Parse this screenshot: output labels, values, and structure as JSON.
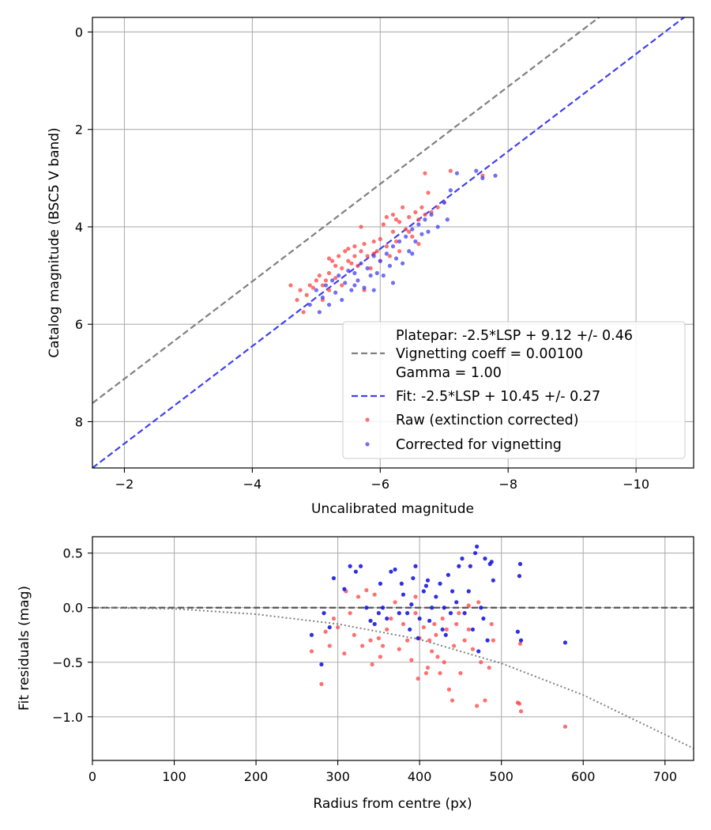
{
  "chart_data": [
    {
      "type": "scatter",
      "title": "",
      "xlabel": "Uncalibrated magnitude",
      "ylabel": "Catalog magnitude (BSC5 V band)",
      "xlim": [
        -1.5,
        -10.9
      ],
      "ylim": [
        8.95,
        -0.3
      ],
      "x_axis_inverted": true,
      "y_axis_inverted": true,
      "xticks": [
        -2,
        -4,
        -6,
        -8,
        -10
      ],
      "xtick_labels": [
        "−2",
        "−4",
        "−6",
        "−8",
        "−10"
      ],
      "yticks": [
        0,
        2,
        4,
        6,
        8
      ],
      "ytick_labels": [
        "0",
        "2",
        "4",
        "6",
        "8"
      ],
      "grid": true,
      "legend_position": "bottom-right",
      "lines": [
        {
          "name": "Platepar: -2.5*LSP + 9.12 +/- 0.46",
          "label_lines": [
            "Platepar: -2.5*LSP + 9.12 +/- 0.46",
            "Vignetting coeff = 0.00100",
            "Gamma = 1.00"
          ],
          "style": "dashed",
          "color": "#808080",
          "slope": 1,
          "intercept": 9.12
        },
        {
          "name": "Fit: -2.5*LSP + 10.45 +/- 0.27",
          "style": "dashed",
          "color": "#4040f0",
          "slope": 1,
          "intercept": 10.45
        }
      ],
      "series": [
        {
          "name": "Raw (extinction corrected)",
          "color": "#ff4040",
          "points": [
            [
              -4.6,
              5.2
            ],
            [
              -4.7,
              5.5
            ],
            [
              -4.75,
              5.3
            ],
            [
              -4.8,
              5.75
            ],
            [
              -4.85,
              5.4
            ],
            [
              -4.9,
              5.2
            ],
            [
              -4.95,
              5.25
            ],
            [
              -5.0,
              5.1
            ],
            [
              -5.05,
              5.0
            ],
            [
              -5.1,
              5.2
            ],
            [
              -5.1,
              5.5
            ],
            [
              -5.15,
              5.1
            ],
            [
              -5.2,
              4.95
            ],
            [
              -5.2,
              5.3
            ],
            [
              -5.25,
              4.7
            ],
            [
              -5.3,
              4.8
            ],
            [
              -5.3,
              5.05
            ],
            [
              -5.35,
              4.6
            ],
            [
              -5.4,
              4.85
            ],
            [
              -5.4,
              5.2
            ],
            [
              -5.45,
              4.5
            ],
            [
              -5.5,
              4.7
            ],
            [
              -5.55,
              4.75
            ],
            [
              -5.6,
              4.4
            ],
            [
              -5.6,
              4.6
            ],
            [
              -5.65,
              4.8
            ],
            [
              -5.7,
              4.0
            ],
            [
              -5.7,
              4.5
            ],
            [
              -5.75,
              4.35
            ],
            [
              -5.75,
              5.3
            ],
            [
              -5.8,
              4.6
            ],
            [
              -5.85,
              4.85
            ],
            [
              -5.9,
              4.3
            ],
            [
              -5.95,
              4.5
            ],
            [
              -6.0,
              4.25
            ],
            [
              -6.0,
              4.7
            ],
            [
              -6.05,
              3.95
            ],
            [
              -6.1,
              4.4
            ],
            [
              -6.1,
              3.8
            ],
            [
              -6.15,
              4.6
            ],
            [
              -6.2,
              3.75
            ],
            [
              -6.2,
              4.1
            ],
            [
              -6.25,
              4.3
            ],
            [
              -6.3,
              3.9
            ],
            [
              -6.3,
              4.5
            ],
            [
              -6.35,
              3.6
            ],
            [
              -6.4,
              4.05
            ],
            [
              -6.45,
              3.8
            ],
            [
              -6.5,
              4.2
            ],
            [
              -6.55,
              3.7
            ],
            [
              -6.6,
              3.85
            ],
            [
              -6.6,
              4.35
            ],
            [
              -6.65,
              3.6
            ],
            [
              -6.7,
              3.75
            ],
            [
              -6.7,
              2.9
            ],
            [
              -6.75,
              3.3
            ],
            [
              -6.8,
              3.7
            ],
            [
              -6.9,
              3.6
            ],
            [
              -7.0,
              3.5
            ],
            [
              -7.1,
              2.85
            ],
            [
              -7.6,
              2.95
            ],
            [
              -5.2,
              4.65
            ],
            [
              -5.5,
              4.45
            ],
            [
              -5.9,
              4.55
            ],
            [
              -6.25,
              3.85
            ],
            [
              -6.45,
              4.1
            ]
          ]
        },
        {
          "name": "Corrected for vignetting",
          "color": "#4040f0",
          "points": [
            [
              -4.9,
              5.6
            ],
            [
              -5.0,
              5.3
            ],
            [
              -5.05,
              5.75
            ],
            [
              -5.1,
              5.45
            ],
            [
              -5.15,
              5.2
            ],
            [
              -5.2,
              5.6
            ],
            [
              -5.25,
              5.1
            ],
            [
              -5.3,
              5.35
            ],
            [
              -5.35,
              5.0
            ],
            [
              -5.4,
              5.5
            ],
            [
              -5.45,
              5.15
            ],
            [
              -5.5,
              4.9
            ],
            [
              -5.55,
              5.3
            ],
            [
              -5.6,
              4.95
            ],
            [
              -5.65,
              5.1
            ],
            [
              -5.7,
              4.75
            ],
            [
              -5.75,
              5.25
            ],
            [
              -5.8,
              4.85
            ],
            [
              -5.85,
              5.0
            ],
            [
              -5.9,
              4.6
            ],
            [
              -5.95,
              4.95
            ],
            [
              -6.0,
              4.7
            ],
            [
              -6.05,
              5.0
            ],
            [
              -6.1,
              4.55
            ],
            [
              -6.15,
              4.8
            ],
            [
              -6.2,
              4.4
            ],
            [
              -6.25,
              4.65
            ],
            [
              -6.3,
              4.3
            ],
            [
              -6.35,
              4.75
            ],
            [
              -6.4,
              4.2
            ],
            [
              -6.45,
              4.5
            ],
            [
              -6.5,
              4.05
            ],
            [
              -6.55,
              4.3
            ],
            [
              -6.6,
              3.95
            ],
            [
              -6.65,
              4.15
            ],
            [
              -6.7,
              3.85
            ],
            [
              -6.75,
              4.1
            ],
            [
              -6.8,
              3.75
            ],
            [
              -6.9,
              4.0
            ],
            [
              -7.0,
              3.5
            ],
            [
              -7.05,
              3.85
            ],
            [
              -7.1,
              3.25
            ],
            [
              -7.2,
              2.9
            ],
            [
              -7.5,
              2.85
            ],
            [
              -7.6,
              3.0
            ],
            [
              -7.8,
              2.95
            ],
            [
              -5.6,
              5.2
            ],
            [
              -5.9,
              5.3
            ],
            [
              -6.2,
              5.15
            ],
            [
              -6.5,
              4.55
            ]
          ]
        }
      ]
    },
    {
      "type": "scatter",
      "title": "",
      "xlabel": "Radius from centre (px)",
      "ylabel": "Fit residuals (mag)",
      "xlim": [
        0,
        735
      ],
      "ylim": [
        -1.4,
        0.65
      ],
      "xticks": [
        0,
        100,
        200,
        300,
        400,
        500,
        600,
        700
      ],
      "xtick_labels": [
        "0",
        "100",
        "200",
        "300",
        "400",
        "500",
        "600",
        "700"
      ],
      "yticks": [
        0.5,
        0.0,
        -0.5,
        -1.0
      ],
      "ytick_labels": [
        "0.5",
        "0.0",
        "−0.5",
        "−1.0"
      ],
      "grid": true,
      "lines": [
        {
          "style": "dashed",
          "color": "#555555",
          "y": 0.0
        },
        {
          "style": "dotted",
          "color": "#808080",
          "curve_points": [
            [
              0,
              0.0
            ],
            [
              100,
              -0.01
            ],
            [
              200,
              -0.06
            ],
            [
              300,
              -0.15
            ],
            [
              400,
              -0.29
            ],
            [
              500,
              -0.51
            ],
            [
              600,
              -0.8
            ],
            [
              735,
              -1.29
            ]
          ]
        }
      ],
      "series": [
        {
          "name": "Raw (extinction corrected)",
          "color": "#ff4040",
          "points": [
            [
              268,
              -0.4
            ],
            [
              280,
              -0.7
            ],
            [
              285,
              -0.22
            ],
            [
              290,
              -0.35
            ],
            [
              295,
              -0.1
            ],
            [
              300,
              -0.18
            ],
            [
              308,
              -0.42
            ],
            [
              310,
              0.15
            ],
            [
              315,
              -0.05
            ],
            [
              320,
              -0.25
            ],
            [
              325,
              0.1
            ],
            [
              330,
              -0.35
            ],
            [
              335,
              0.16
            ],
            [
              340,
              -0.3
            ],
            [
              342,
              -0.52
            ],
            [
              345,
              0.12
            ],
            [
              350,
              -0.28
            ],
            [
              352,
              -0.45
            ],
            [
              355,
              -0.35
            ],
            [
              360,
              -0.2
            ],
            [
              365,
              -0.1
            ],
            [
              370,
              0.05
            ],
            [
              375,
              -0.38
            ],
            [
              380,
              -0.15
            ],
            [
              385,
              -0.3
            ],
            [
              390,
              -0.48
            ],
            [
              395,
              -0.05
            ],
            [
              398,
              -0.65
            ],
            [
              400,
              -0.28
            ],
            [
              405,
              -0.18
            ],
            [
              408,
              -0.6
            ],
            [
              410,
              -0.55
            ],
            [
              412,
              -0.3
            ],
            [
              415,
              -0.4
            ],
            [
              418,
              -0.15
            ],
            [
              420,
              -0.25
            ],
            [
              422,
              -0.45
            ],
            [
              425,
              -0.6
            ],
            [
              428,
              -0.1
            ],
            [
              430,
              -0.5
            ],
            [
              433,
              -0.2
            ],
            [
              436,
              -0.75
            ],
            [
              440,
              -0.85
            ],
            [
              442,
              -0.35
            ],
            [
              445,
              -0.15
            ],
            [
              448,
              -0.05
            ],
            [
              450,
              -0.6
            ],
            [
              455,
              -0.3
            ],
            [
              460,
              -0.2
            ],
            [
              465,
              -0.38
            ],
            [
              470,
              -0.9
            ],
            [
              472,
              0.05
            ],
            [
              475,
              -0.5
            ],
            [
              480,
              -0.85
            ],
            [
              485,
              -0.55
            ],
            [
              488,
              -0.15
            ],
            [
              490,
              -0.3
            ],
            [
              520,
              -0.87
            ],
            [
              522,
              -0.88
            ],
            [
              524,
              -0.95
            ],
            [
              523,
              -0.33
            ],
            [
              578,
              -1.09
            ],
            [
              460,
              0.02
            ],
            [
              395,
              0.1
            ]
          ]
        },
        {
          "name": "Corrected for vignetting",
          "color": "#1818e0",
          "points": [
            [
              268,
              -0.25
            ],
            [
              280,
              -0.52
            ],
            [
              283,
              -0.05
            ],
            [
              290,
              -0.18
            ],
            [
              295,
              0.27
            ],
            [
              308,
              0.17
            ],
            [
              315,
              0.38
            ],
            [
              322,
              0.33
            ],
            [
              328,
              0.38
            ],
            [
              335,
              0.0
            ],
            [
              340,
              -0.12
            ],
            [
              345,
              -0.15
            ],
            [
              350,
              -0.05
            ],
            [
              352,
              0.22
            ],
            [
              355,
              0.0
            ],
            [
              360,
              -0.1
            ],
            [
              365,
              0.33
            ],
            [
              370,
              0.35
            ],
            [
              375,
              -0.05
            ],
            [
              378,
              0.22
            ],
            [
              380,
              0.12
            ],
            [
              385,
              -0.05
            ],
            [
              388,
              -0.2
            ],
            [
              390,
              0.03
            ],
            [
              392,
              0.27
            ],
            [
              395,
              0.38
            ],
            [
              398,
              -0.28
            ],
            [
              400,
              -0.1
            ],
            [
              405,
              0.15
            ],
            [
              408,
              0.2
            ],
            [
              410,
              0.25
            ],
            [
              412,
              -0.12
            ],
            [
              415,
              0.0
            ],
            [
              420,
              0.1
            ],
            [
              425,
              0.22
            ],
            [
              428,
              -0.2
            ],
            [
              430,
              0.0
            ],
            [
              432,
              -0.25
            ],
            [
              435,
              0.3
            ],
            [
              438,
              -0.05
            ],
            [
              440,
              0.15
            ],
            [
              445,
              0.05
            ],
            [
              448,
              0.38
            ],
            [
              452,
              0.45
            ],
            [
              455,
              -0.05
            ],
            [
              460,
              0.15
            ],
            [
              462,
              0.38
            ],
            [
              465,
              -0.2
            ],
            [
              468,
              0.5
            ],
            [
              470,
              0.56
            ],
            [
              472,
              -0.4
            ],
            [
              475,
              0.0
            ],
            [
              478,
              -0.1
            ],
            [
              480,
              0.45
            ],
            [
              483,
              -0.3
            ],
            [
              486,
              0.4
            ],
            [
              488,
              0.42
            ],
            [
              490,
              0.25
            ],
            [
              520,
              -0.22
            ],
            [
              522,
              0.29
            ],
            [
              523,
              0.4
            ],
            [
              524,
              -0.3
            ],
            [
              578,
              -0.32
            ]
          ]
        }
      ]
    }
  ]
}
